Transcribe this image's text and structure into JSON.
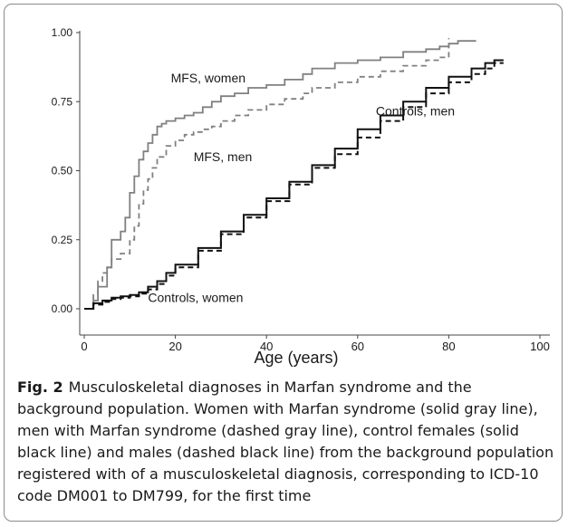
{
  "figure": {
    "label": "Fig. 2",
    "caption": "Musculoskeletal diagnoses in Marfan syndrome and the background population. Women with Marfan syndrome (solid gray line), men with Marfan syndrome (dashed gray line), control females (solid black line) and males (dashed black line) from the background population registered with of a musculoskeletal diagnosis, corresponding to ICD-10 code DM001 to DM799, for the first time"
  },
  "chart_data": {
    "type": "line",
    "title": "",
    "xlabel": "Age (years)",
    "ylabel": "",
    "xlim": [
      0,
      100
    ],
    "ylim": [
      0,
      1
    ],
    "xticks": [
      "0",
      "20",
      "40",
      "60",
      "80",
      "100"
    ],
    "yticks": [
      "0.00",
      "0.25",
      "0.50",
      "0.75",
      "1.00"
    ],
    "grid": false,
    "series": [
      {
        "name": "MFS, women",
        "color": "#808080",
        "dash": "solid",
        "x": [
          0,
          2,
          3,
          5,
          6,
          8,
          9,
          10,
          11,
          12,
          13,
          14,
          15,
          16,
          17,
          18,
          20,
          22,
          24,
          26,
          28,
          30,
          33,
          36,
          40,
          44,
          48,
          50,
          55,
          60,
          65,
          70,
          75,
          78,
          80,
          82,
          86
        ],
        "y": [
          0.0,
          0.03,
          0.08,
          0.15,
          0.25,
          0.28,
          0.33,
          0.42,
          0.48,
          0.54,
          0.57,
          0.6,
          0.63,
          0.66,
          0.67,
          0.68,
          0.69,
          0.7,
          0.71,
          0.73,
          0.75,
          0.77,
          0.78,
          0.8,
          0.81,
          0.83,
          0.85,
          0.87,
          0.89,
          0.9,
          0.91,
          0.93,
          0.94,
          0.95,
          0.96,
          0.97,
          0.97
        ]
      },
      {
        "name": "MFS, men",
        "color": "#808080",
        "dash": "dashed",
        "x": [
          0,
          2,
          3,
          4,
          5,
          6,
          8,
          10,
          11,
          12,
          13,
          14,
          15,
          16,
          18,
          20,
          22,
          24,
          26,
          28,
          30,
          33,
          36,
          40,
          44,
          48,
          50,
          55,
          60,
          65,
          70,
          75,
          78,
          79,
          80
        ],
        "y": [
          0.0,
          0.05,
          0.1,
          0.13,
          0.15,
          0.18,
          0.2,
          0.25,
          0.3,
          0.38,
          0.43,
          0.47,
          0.51,
          0.55,
          0.59,
          0.61,
          0.63,
          0.64,
          0.65,
          0.66,
          0.68,
          0.7,
          0.72,
          0.74,
          0.76,
          0.78,
          0.8,
          0.82,
          0.84,
          0.86,
          0.88,
          0.9,
          0.91,
          0.91,
          0.98
        ]
      },
      {
        "name": "Controls, women",
        "color": "#111111",
        "dash": "solid",
        "x": [
          0,
          2,
          4,
          6,
          8,
          10,
          12,
          14,
          16,
          18,
          20,
          25,
          30,
          35,
          40,
          45,
          50,
          55,
          60,
          65,
          70,
          75,
          80,
          85,
          88,
          90,
          92
        ],
        "y": [
          0.0,
          0.02,
          0.03,
          0.04,
          0.045,
          0.05,
          0.06,
          0.08,
          0.1,
          0.13,
          0.16,
          0.22,
          0.28,
          0.34,
          0.4,
          0.46,
          0.52,
          0.58,
          0.65,
          0.7,
          0.75,
          0.8,
          0.84,
          0.87,
          0.89,
          0.9,
          0.9
        ]
      },
      {
        "name": "Controls, men",
        "color": "#111111",
        "dash": "dashed",
        "x": [
          0,
          2,
          4,
          6,
          8,
          10,
          12,
          14,
          16,
          18,
          20,
          25,
          30,
          35,
          40,
          45,
          50,
          55,
          60,
          65,
          70,
          75,
          80,
          85,
          88,
          90,
          92
        ],
        "y": [
          0.0,
          0.015,
          0.025,
          0.035,
          0.04,
          0.045,
          0.055,
          0.07,
          0.09,
          0.12,
          0.15,
          0.21,
          0.27,
          0.33,
          0.39,
          0.45,
          0.51,
          0.56,
          0.62,
          0.68,
          0.73,
          0.78,
          0.82,
          0.85,
          0.87,
          0.89,
          0.89
        ]
      }
    ],
    "annotations": [
      {
        "text": "MFS, women",
        "x": 19,
        "y": 0.82
      },
      {
        "text": "MFS, men",
        "x": 24,
        "y": 0.535
      },
      {
        "text": "Controls, men",
        "x": 64,
        "y": 0.7
      },
      {
        "text": "Controls, women",
        "x": 14,
        "y": 0.025
      }
    ]
  }
}
